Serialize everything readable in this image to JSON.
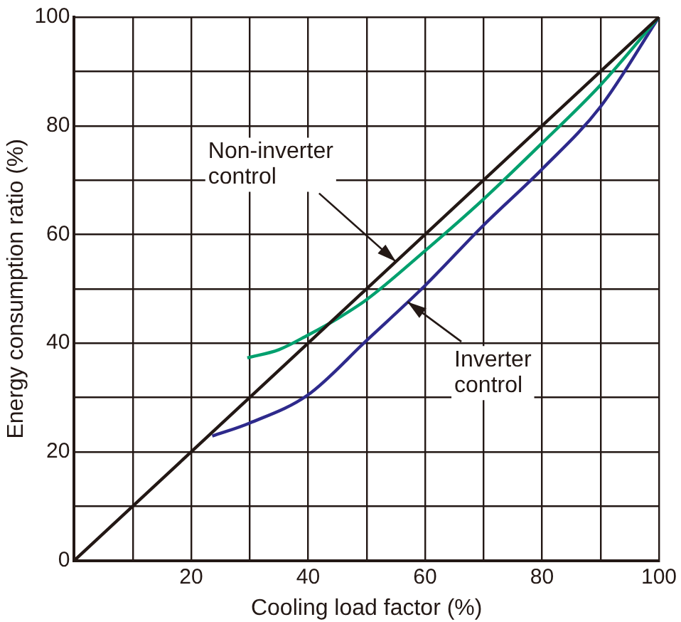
{
  "chart_data": {
    "type": "line",
    "xlabel": "Cooling load factor (%)",
    "ylabel": "Energy consumption ratio (%)",
    "xlim": [
      0,
      100
    ],
    "ylim": [
      0,
      100
    ],
    "xticks": [
      {
        "value": 0,
        "label": null
      },
      {
        "value": 10,
        "label": null
      },
      20,
      {
        "value": 30,
        "label": null
      },
      40,
      {
        "value": 50,
        "label": null
      },
      60,
      {
        "value": 70,
        "label": null
      },
      80,
      {
        "value": 90,
        "label": null
      },
      100
    ],
    "yticks": [
      0,
      {
        "value": 10,
        "label": null
      },
      20,
      {
        "value": 30,
        "label": null
      },
      40,
      {
        "value": 50,
        "label": null
      },
      60,
      {
        "value": 70,
        "label": null
      },
      80,
      {
        "value": 90,
        "label": null
      },
      100
    ],
    "grid": true,
    "legend": false,
    "marker": "none",
    "line_style": "solid",
    "series": [
      {
        "color": "#231815",
        "x": [
          0,
          100
        ],
        "values": [
          0,
          100
        ]
      },
      {
        "color": "#00a06e",
        "x": [
          29.6,
          35,
          40,
          45,
          50,
          60,
          70,
          80,
          90,
          100
        ],
        "values": [
          37.3,
          38.8,
          41.5,
          44.5,
          48,
          57,
          66.5,
          76.8,
          87.5,
          100
        ]
      },
      {
        "color": "#2e2a8c",
        "x": [
          23.6,
          30,
          40,
          50,
          60,
          70,
          80,
          90,
          100
        ],
        "values": [
          22.9,
          25.3,
          30.5,
          40.5,
          50.6,
          61.7,
          72,
          83.5,
          100
        ]
      }
    ],
    "annotations": [
      {
        "text": "Non-inverter\ncontrol",
        "x": 55,
        "y": 55
      },
      {
        "text": "Inverter\ncontrol",
        "x": 57,
        "y": 47.6
      }
    ]
  }
}
